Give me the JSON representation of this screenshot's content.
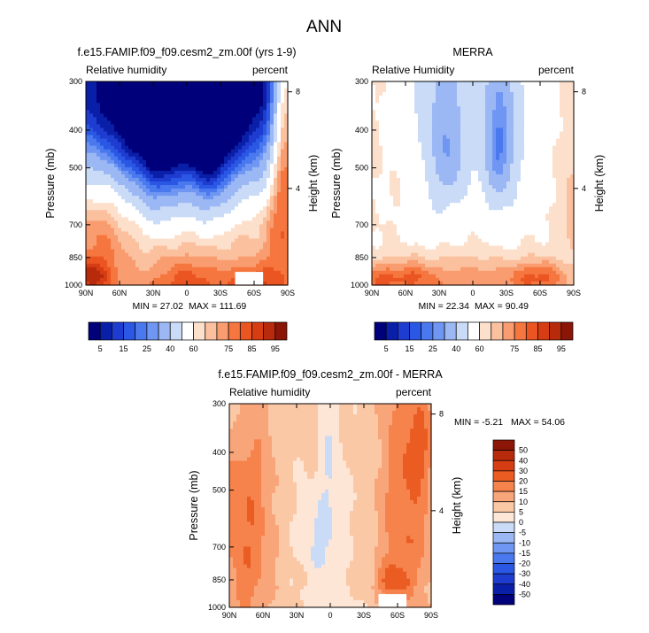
{
  "page_title": "ANN",
  "chart_data": [
    {
      "type": "heatmap",
      "id": "model",
      "title": "f.e15.FAMIP.f09_f09.cesm2_zm.00f (yrs 1-9)",
      "variable_label": "Relative humidity",
      "units_label": "percent",
      "ylabel": "Pressure (mb)",
      "ylabel_right": "Height (km)",
      "x_ticks": [
        "90N",
        "60N",
        "30N",
        "0",
        "30S",
        "60S",
        "90S"
      ],
      "x_values": [
        90,
        60,
        30,
        0,
        -30,
        -60,
        -90
      ],
      "xlim": [
        90,
        -90
      ],
      "y_ticks": [
        "300",
        "400",
        "500",
        "700",
        "850",
        "1000"
      ],
      "y_values": [
        300,
        400,
        500,
        700,
        850,
        1000
      ],
      "ylim": [
        1000,
        300
      ],
      "height_ticks": [
        "8",
        "4"
      ],
      "height_values": [
        8,
        4
      ],
      "min_label": "MIN = 27.02",
      "max_label": "MAX = 111.69",
      "min": 27.02,
      "max": 111.69,
      "colorbar_id": "abs",
      "colorbar_labels": [
        "5",
        "15",
        "25",
        "40",
        "60",
        "75",
        "85",
        "95"
      ],
      "missing_box": {
        "lat": [
          -43,
          -68
        ],
        "p": [
          925,
          1000
        ]
      },
      "base": 68,
      "features": [
        {
          "lat": 30,
          "p": 300,
          "sl": 90,
          "sp": 180,
          "a": -48
        },
        {
          "lat": -6,
          "p": 300,
          "sl": 95,
          "sp": 180,
          "a": -48
        },
        {
          "lat": 25,
          "p": 530,
          "sl": 14,
          "sp": 150,
          "a": -16
        },
        {
          "lat": -20,
          "p": 500,
          "sl": 14,
          "sp": 150,
          "a": -20
        },
        {
          "lat": 0,
          "p": 1000,
          "sl": 22,
          "sp": 100,
          "a": 16
        },
        {
          "lat": 78,
          "p": 650,
          "sl": 16,
          "sp": 700,
          "a": 10
        },
        {
          "lat": 90,
          "p": 950,
          "sl": 14,
          "sp": 60,
          "a": 20
        },
        {
          "lat": -60,
          "p": 1000,
          "sl": 18,
          "sp": 80,
          "a": 18
        },
        {
          "lat": -88,
          "p": 350,
          "sl": 8,
          "sp": 160,
          "a": 40
        },
        {
          "lat": -85,
          "p": 650,
          "sl": 10,
          "sp": 250,
          "a": 14
        }
      ]
    },
    {
      "type": "heatmap",
      "id": "obs",
      "title": "MERRA",
      "variable_label": "Relative Humidity",
      "units_label": "percent",
      "ylabel": "Pressure (mb)",
      "ylabel_right": "Height (km)",
      "x_ticks": [
        "90N",
        "60N",
        "30N",
        "0",
        "30S",
        "60S",
        "90S"
      ],
      "x_values": [
        90,
        60,
        30,
        0,
        -30,
        -60,
        -90
      ],
      "xlim": [
        90,
        -90
      ],
      "y_ticks": [
        "300",
        "400",
        "500",
        "700",
        "850",
        "1000"
      ],
      "y_values": [
        300,
        400,
        500,
        700,
        850,
        1000
      ],
      "ylim": [
        1000,
        300
      ],
      "height_ticks": [
        "8",
        "4"
      ],
      "height_values": [
        8,
        4
      ],
      "min_label": "MIN = 22.34",
      "max_label": "MAX = 90.49",
      "min": 22.34,
      "max": 90.49,
      "colorbar_id": "abs",
      "colorbar_labels": [
        "5",
        "15",
        "25",
        "40",
        "60",
        "75",
        "85",
        "95"
      ],
      "base": 60,
      "features": [
        {
          "lat": 30,
          "p": 330,
          "sl": 16,
          "sp": 230,
          "a": -20
        },
        {
          "lat": -25,
          "p": 330,
          "sl": 16,
          "sp": 230,
          "a": -20
        },
        {
          "lat": 20,
          "p": 460,
          "sl": 9,
          "sp": 100,
          "a": -14
        },
        {
          "lat": -24,
          "p": 450,
          "sl": 9,
          "sp": 100,
          "a": -18
        },
        {
          "lat": 0,
          "p": 300,
          "sl": 14,
          "sp": 220,
          "a": -4
        },
        {
          "lat": 0,
          "p": 1000,
          "sl": 30,
          "sp": 120,
          "a": 14
        },
        {
          "lat": 60,
          "p": 960,
          "sl": 20,
          "sp": 70,
          "a": 20
        },
        {
          "lat": -60,
          "p": 960,
          "sl": 20,
          "sp": 70,
          "a": 20
        },
        {
          "lat": 90,
          "p": 1000,
          "sl": 10,
          "sp": 80,
          "a": 14
        },
        {
          "lat": -90,
          "p": 650,
          "sl": 6,
          "sp": 120,
          "a": 10
        }
      ]
    },
    {
      "type": "heatmap",
      "id": "diff",
      "title": "f.e15.FAMIP.f09_f09.cesm2_zm.00f - MERRA",
      "variable_label": "Relative humidity",
      "units_label": "percent",
      "ylabel": "Pressure (mb)",
      "ylabel_right": "Height (km)",
      "x_ticks": [
        "90N",
        "60N",
        "30N",
        "0",
        "30S",
        "60S",
        "90S"
      ],
      "x_values": [
        90,
        60,
        30,
        0,
        -30,
        -60,
        -90
      ],
      "xlim": [
        90,
        -90
      ],
      "y_ticks": [
        "300",
        "400",
        "500",
        "700",
        "850",
        "1000"
      ],
      "y_values": [
        300,
        400,
        500,
        700,
        850,
        1000
      ],
      "ylim": [
        1000,
        300
      ],
      "height_ticks": [
        "8",
        "4"
      ],
      "height_values": [
        8,
        4
      ],
      "min_label": "MIN = -5.21",
      "max_label": "MAX = 54.06",
      "min": -5.21,
      "max": 54.06,
      "colorbar_id": "diff",
      "colorbar_labels": [
        "50",
        "40",
        "30",
        "20",
        "15",
        "10",
        "5",
        "0",
        "-5",
        "-10",
        "-15",
        "-20",
        "-30",
        "-40",
        "-50"
      ],
      "missing_box": {
        "lat": [
          -43,
          -68
        ],
        "p": [
          925,
          1000
        ]
      },
      "base": 6,
      "features": [
        {
          "lat": 75,
          "p": 620,
          "sl": 17,
          "sp": 380,
          "a": 14
        },
        {
          "lat": -68,
          "p": 560,
          "sl": 18,
          "sp": 320,
          "a": 14
        },
        {
          "lat": -55,
          "p": 860,
          "sl": 10,
          "sp": 60,
          "a": 12
        },
        {
          "lat": -80,
          "p": 380,
          "sl": 8,
          "sp": 70,
          "a": 8
        },
        {
          "lat": 8,
          "p": 680,
          "sl": 14,
          "sp": 130,
          "a": -7
        },
        {
          "lat": 0,
          "p": 420,
          "sl": 7,
          "sp": 120,
          "a": -5
        },
        {
          "lat": 80,
          "p": 300,
          "sl": 12,
          "sp": 80,
          "a": -6
        },
        {
          "lat": 0,
          "p": 990,
          "sl": 18,
          "sp": 60,
          "a": -3
        }
      ]
    }
  ],
  "colorbars": {
    "abs": {
      "orientation": "horizontal",
      "levels": [
        5,
        10,
        15,
        20,
        25,
        30,
        40,
        50,
        60,
        65,
        70,
        75,
        80,
        85,
        90,
        95
      ],
      "colors": [
        "#00007a",
        "#0a1fa8",
        "#1e3cd0",
        "#2a58e4",
        "#4a78ee",
        "#6e96f2",
        "#9bb8f5",
        "#c9dbf7",
        "#ffffff",
        "#fde0cc",
        "#fbc09d",
        "#f99c70",
        "#f6763f",
        "#ea5522",
        "#d63d13",
        "#b72a0b",
        "#8b1608"
      ],
      "labels": [
        "5",
        "15",
        "25",
        "40",
        "60",
        "75",
        "85",
        "95"
      ]
    },
    "diff": {
      "orientation": "vertical",
      "levels": [
        -50,
        -40,
        -30,
        -20,
        -15,
        -10,
        -5,
        0,
        5,
        10,
        15,
        20,
        30,
        40,
        50
      ],
      "colors": [
        "#00007a",
        "#0a1fa8",
        "#1e3cd0",
        "#2a58e4",
        "#4a78ee",
        "#6e96f2",
        "#9bb8f5",
        "#c9dbf7",
        "#fde6d6",
        "#fbc8a6",
        "#f9a57a",
        "#f6824c",
        "#ea5c22",
        "#d63d13",
        "#b72a0b",
        "#8b1608"
      ],
      "labels": [
        "50",
        "40",
        "30",
        "20",
        "15",
        "10",
        "5",
        "0",
        "-5",
        "-10",
        "-15",
        "-20",
        "-30",
        "-40",
        "-50"
      ]
    }
  }
}
